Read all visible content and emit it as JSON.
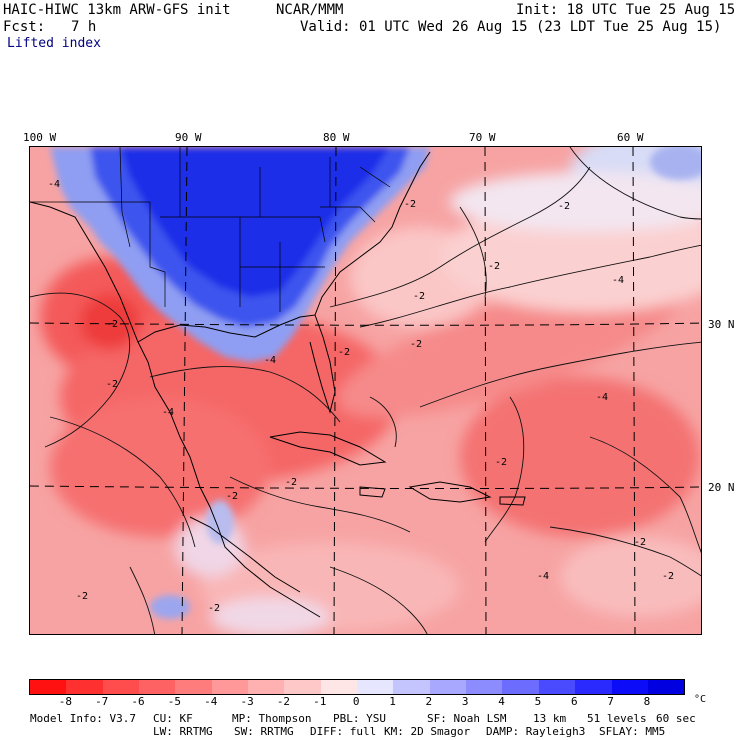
{
  "header": {
    "model": "HAIC-HIWC 13km ARW-GFS init",
    "center": "NCAR/MMM",
    "init": "Init: 18 UTC Tue 25 Aug 15",
    "fcst_label": "Fcst:",
    "fcst_value": "7 h",
    "valid": "Valid: 01 UTC Wed 26 Aug 15 (23 LDT Tue 25 Aug 15)",
    "field": "Lifted index"
  },
  "map": {
    "lon_labels": [
      "100 W",
      "90 W",
      "80 W",
      "70 W",
      "60 W"
    ],
    "lat_labels": [
      "30 N",
      "20 N"
    ],
    "contour_labels": [
      "-4",
      "-2",
      "-2",
      "-2",
      "-2",
      "-4",
      "-2",
      "-2",
      "-4",
      "-2",
      "-4",
      "-4",
      "-2",
      "-2",
      "-2",
      "-2",
      "-4",
      "-2",
      "-2",
      "-2",
      "-2"
    ]
  },
  "colorbar": {
    "ticks": [
      "-8",
      "-7",
      "-6",
      "-5",
      "-4",
      "-3",
      "-2",
      "-1",
      "0",
      "1",
      "2",
      "3",
      "4",
      "5",
      "6",
      "7",
      "8"
    ],
    "unit": "°C",
    "colors": [
      "#ff1111",
      "#ff3030",
      "#ff4c4c",
      "#ff6262",
      "#ff7c7c",
      "#ff9898",
      "#ffb0b0",
      "#ffc8c8",
      "#ffe6e6",
      "#e6e6ff",
      "#c4c4ff",
      "#a8a8ff",
      "#8c8cff",
      "#6c6cff",
      "#4a4aff",
      "#2a2aff",
      "#0c0cf8",
      "#0000e0"
    ]
  },
  "footer": {
    "line1": [
      "Model Info: V3.7",
      "CU: KF",
      "MP: Thompson",
      "PBL: YSU",
      "SF: Noah LSM",
      "13 km",
      "51 levels",
      "60 sec"
    ],
    "line2": [
      "LW: RRTMG",
      "SW: RRTMG",
      "DIFF: full",
      "KM: 2D Smagor",
      "DAMP: Rayleigh3",
      "SFLAY: MM5"
    ]
  }
}
